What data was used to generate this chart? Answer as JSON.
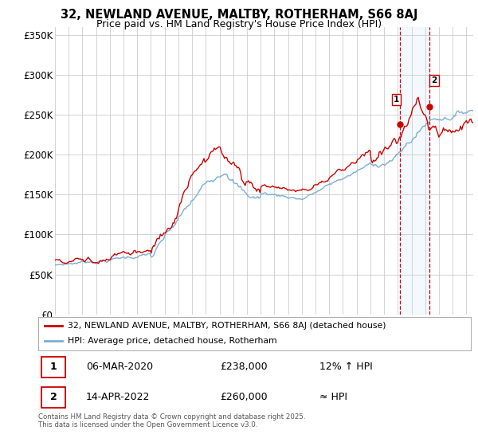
{
  "title_line1": "32, NEWLAND AVENUE, MALTBY, ROTHERHAM, S66 8AJ",
  "title_line2": "Price paid vs. HM Land Registry's House Price Index (HPI)",
  "ytick_labels": [
    "£0",
    "£50K",
    "£100K",
    "£150K",
    "£200K",
    "£250K",
    "£300K",
    "£350K"
  ],
  "yticks": [
    0,
    50000,
    100000,
    150000,
    200000,
    250000,
    300000,
    350000
  ],
  "ylim_min": 0,
  "ylim_max": 360000,
  "xlim_start": 1995.0,
  "xlim_end": 2025.5,
  "legend_line1": "32, NEWLAND AVENUE, MALTBY, ROTHERHAM, S66 8AJ (detached house)",
  "legend_line2": "HPI: Average price, detached house, Rotherham",
  "legend_line1_color": "#cc0000",
  "legend_line2_color": "#7aaed6",
  "sale1_date": "06-MAR-2020",
  "sale1_price": "£238,000",
  "sale1_hpi": "12% ↑ HPI",
  "sale1_x": 2020.18,
  "sale1_y": 238000,
  "sale2_date": "14-APR-2022",
  "sale2_price": "£260,000",
  "sale2_hpi": "≈ HPI",
  "sale2_x": 2022.29,
  "sale2_y": 260000,
  "vline1_x": 2020.18,
  "vline2_x": 2022.29,
  "vline_color": "#cc0000",
  "shade_color": "#ddeeff",
  "footnote": "Contains HM Land Registry data © Crown copyright and database right 2025.\nThis data is licensed under the Open Government Licence v3.0.",
  "background_color": "#ffffff",
  "grid_color": "#cccccc"
}
